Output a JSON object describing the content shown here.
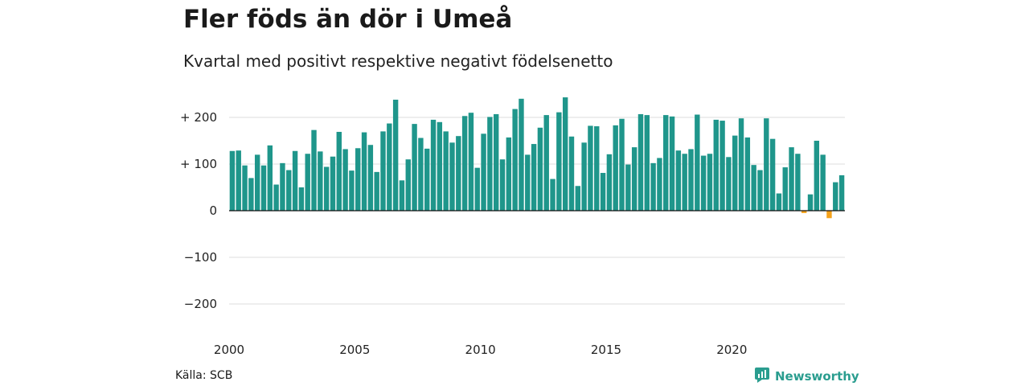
{
  "header": {
    "title": "Fler föds än dör i Umeå",
    "subtitle": "Kvartal med positivt respektive negativt födelsenetto"
  },
  "footer": {
    "source": "Källa: SCB",
    "brand": "Newsworthy",
    "brand_icon": "newsworthy-logo-icon"
  },
  "colors": {
    "positive": "#1f968b",
    "negative": "#f5a21b",
    "grid": "#dddddd",
    "zero_line": "#111111",
    "brand": "#2a9d8f"
  },
  "chart_data": {
    "type": "bar",
    "start_year": 2000,
    "periods_per_year": 4,
    "values": [
      128,
      129,
      97,
      70,
      120,
      97,
      140,
      56,
      102,
      87,
      128,
      50,
      122,
      173,
      127,
      94,
      116,
      169,
      132,
      86,
      134,
      168,
      141,
      83,
      170,
      187,
      238,
      65,
      110,
      186,
      156,
      133,
      195,
      190,
      170,
      146,
      160,
      203,
      210,
      92,
      165,
      201,
      207,
      110,
      157,
      218,
      240,
      120,
      143,
      178,
      205,
      68,
      211,
      243,
      159,
      53,
      146,
      182,
      181,
      81,
      121,
      183,
      197,
      99,
      136,
      207,
      205,
      102,
      113,
      205,
      202,
      129,
      122,
      132,
      206,
      118,
      122,
      195,
      193,
      115,
      161,
      198,
      157,
      98,
      87,
      198,
      154,
      37,
      93,
      136,
      122,
      -5,
      35,
      150,
      120,
      -16,
      61,
      76
    ],
    "x_ticks": [
      "2000",
      "2005",
      "2010",
      "2015",
      "2020"
    ],
    "y_ticks": [
      {
        "value": 200,
        "label": "+ 200"
      },
      {
        "value": 100,
        "label": "+ 100"
      },
      {
        "value": 0,
        "label": "0"
      },
      {
        "value": -100,
        "label": "−100"
      },
      {
        "value": -200,
        "label": "−200"
      }
    ],
    "ylim": [
      -200,
      250
    ],
    "grid": true,
    "legend": "none"
  }
}
